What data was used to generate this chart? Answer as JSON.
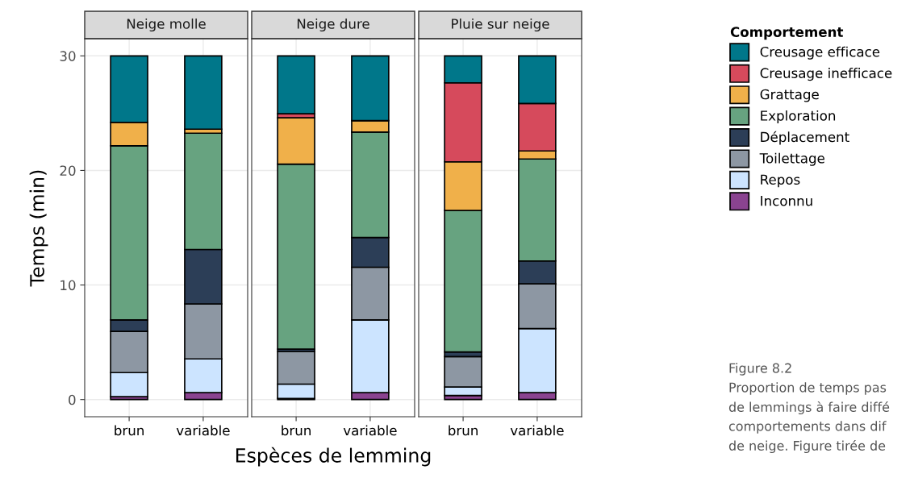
{
  "chart_data": [
    {
      "type": "bar",
      "title": "Neige molle",
      "ylabel": "Temps (min)",
      "categories": [
        "brun",
        "variable"
      ],
      "stacked": true,
      "ylim": [
        -1.5,
        31.5
      ],
      "yticks": [
        0,
        10,
        20,
        30
      ],
      "grid": true,
      "legend": "right",
      "legend_title": "Comportement",
      "series": [
        {
          "name": "Inconnu",
          "color": "#8a4390",
          "values": [
            0.25,
            0.6
          ]
        },
        {
          "name": "Repos",
          "color": "#cce4ff",
          "values": [
            2.1,
            2.95
          ]
        },
        {
          "name": "Toilettage",
          "color": "#8d97a3",
          "values": [
            3.6,
            4.8
          ]
        },
        {
          "name": "Déplacement",
          "color": "#2c3e57",
          "values": [
            1.0,
            4.75
          ]
        },
        {
          "name": "Exploration",
          "color": "#67a380",
          "values": [
            15.2,
            10.15
          ]
        },
        {
          "name": "Grattage",
          "color": "#f0b04a",
          "values": [
            2.05,
            0.35
          ]
        },
        {
          "name": "Creusage inefficace",
          "color": "#d64a5c",
          "values": [
            0,
            0
          ]
        },
        {
          "name": "Creusage efficace",
          "color": "#00778a",
          "values": [
            5.8,
            6.4
          ]
        }
      ]
    },
    {
      "type": "bar",
      "title": "Neige dure",
      "xlabel": "Espèces de lemming",
      "categories": [
        "brun",
        "variable"
      ],
      "stacked": true,
      "ylim": [
        -1.5,
        31.5
      ],
      "yticks": [
        0,
        10,
        20,
        30
      ],
      "tick_labels": "x",
      "grid": true,
      "series": [
        {
          "color": "#8a4390",
          "values": [
            0.1,
            0.6
          ]
        },
        {
          "color": "#cce4ff",
          "values": [
            1.25,
            6.35
          ]
        },
        {
          "color": "#8d97a3",
          "values": [
            2.85,
            4.6
          ]
        },
        {
          "color": "#2c3e57",
          "values": [
            0.2,
            2.6
          ]
        },
        {
          "color": "#67a380",
          "values": [
            16.15,
            9.2
          ]
        },
        {
          "color": "#f0b04a",
          "values": [
            4.05,
            1.0
          ]
        },
        {
          "color": "#d64a5c",
          "values": [
            0.35,
            0
          ]
        },
        {
          "color": "#00778a",
          "values": [
            5.05,
            5.65
          ]
        }
      ]
    },
    {
      "type": "bar",
      "title": "Pluie sur neige",
      "categories": [
        "brun",
        "variable"
      ],
      "stacked": true,
      "ylim": [
        -1.5,
        31.5
      ],
      "yticks": [
        0,
        10,
        20,
        30
      ],
      "tick_labels": "x",
      "grid": true,
      "annotations": [
        "Figure 8.2",
        "Proportion de temps pas",
        "de lemmings à faire diffé",
        "comportements dans dif",
        "de neige. Figure tirée de"
      ],
      "series": [
        {
          "color": "#8a4390",
          "values": [
            0.35,
            0.6
          ]
        },
        {
          "color": "#cce4ff",
          "values": [
            0.75,
            5.6
          ]
        },
        {
          "color": "#8d97a3",
          "values": [
            2.65,
            3.9
          ]
        },
        {
          "color": "#2c3e57",
          "values": [
            0.4,
            2.0
          ]
        },
        {
          "color": "#67a380",
          "values": [
            12.35,
            8.9
          ]
        },
        {
          "color": "#f0b04a",
          "values": [
            4.25,
            0.7
          ]
        },
        {
          "color": "#d64a5c",
          "values": [
            6.9,
            4.15
          ]
        },
        {
          "color": "#00778a",
          "values": [
            2.35,
            4.15
          ]
        }
      ]
    }
  ]
}
